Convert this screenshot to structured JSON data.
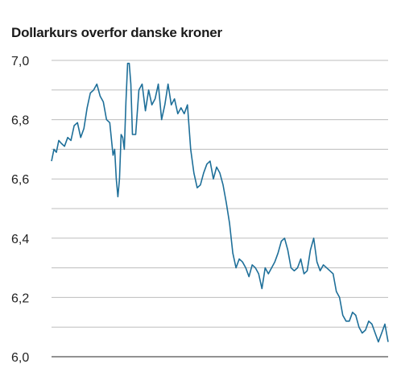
{
  "chart_data": {
    "type": "line",
    "title": "Dollarkurs overfor danske kroner",
    "xlabel": "",
    "ylabel": "",
    "ylim": [
      6.0,
      7.0
    ],
    "y_tick_values": [
      6.0,
      6.2,
      6.4,
      6.6,
      6.8,
      7.0
    ],
    "y_tick_labels": [
      "6,0",
      "6,2",
      "6,4",
      "6,6",
      "6,8",
      "7,0"
    ],
    "grid": true,
    "legend": "none",
    "colors": {
      "line": "#1e6f99",
      "grid": "#bdbdbd",
      "baseline": "#6e6e6e"
    },
    "series": [
      {
        "x": [
          0,
          3,
          6,
          9,
          12,
          16,
          20,
          24,
          28,
          32,
          36,
          40,
          44,
          48,
          52,
          56,
          60,
          64,
          68,
          72,
          76,
          78,
          80,
          82,
          84,
          86,
          88,
          90,
          92,
          94,
          96,
          98,
          100,
          104,
          108,
          112,
          116,
          120,
          124,
          128,
          132,
          136,
          140,
          144,
          148,
          152,
          156,
          160,
          164,
          168,
          172,
          176,
          180,
          184,
          188,
          192,
          196,
          200,
          204,
          208,
          212,
          216,
          220,
          224,
          228,
          232,
          236,
          240,
          244,
          248,
          252,
          256,
          260,
          264,
          268,
          272,
          276,
          280,
          284,
          288,
          292,
          296,
          300,
          304,
          308,
          312,
          316,
          320,
          324,
          328,
          332,
          336,
          340,
          344,
          348,
          352,
          356,
          360,
          364,
          368,
          372,
          376,
          380,
          384,
          388,
          392,
          396,
          400,
          404,
          408,
          412,
          416
        ],
        "y": [
          6.66,
          6.7,
          6.69,
          6.73,
          6.72,
          6.71,
          6.74,
          6.73,
          6.78,
          6.79,
          6.74,
          6.77,
          6.84,
          6.89,
          6.9,
          6.92,
          6.88,
          6.86,
          6.8,
          6.79,
          6.68,
          6.7,
          6.6,
          6.54,
          6.6,
          6.75,
          6.74,
          6.7,
          6.86,
          6.99,
          6.99,
          6.92,
          6.75,
          6.75,
          6.9,
          6.92,
          6.83,
          6.9,
          6.85,
          6.87,
          6.92,
          6.8,
          6.85,
          6.92,
          6.85,
          6.87,
          6.82,
          6.84,
          6.82,
          6.85,
          6.7,
          6.62,
          6.57,
          6.58,
          6.62,
          6.65,
          6.66,
          6.6,
          6.64,
          6.62,
          6.58,
          6.52,
          6.45,
          6.35,
          6.3,
          6.33,
          6.32,
          6.3,
          6.27,
          6.31,
          6.3,
          6.28,
          6.23,
          6.3,
          6.28,
          6.3,
          6.32,
          6.35,
          6.39,
          6.4,
          6.36,
          6.3,
          6.29,
          6.3,
          6.33,
          6.28,
          6.29,
          6.36,
          6.4,
          6.32,
          6.29,
          6.31,
          6.3,
          6.29,
          6.28,
          6.22,
          6.2,
          6.14,
          6.12,
          6.12,
          6.15,
          6.14,
          6.1,
          6.08,
          6.09,
          6.12,
          6.11,
          6.08,
          6.05,
          6.08,
          6.11,
          6.05
        ]
      }
    ]
  }
}
